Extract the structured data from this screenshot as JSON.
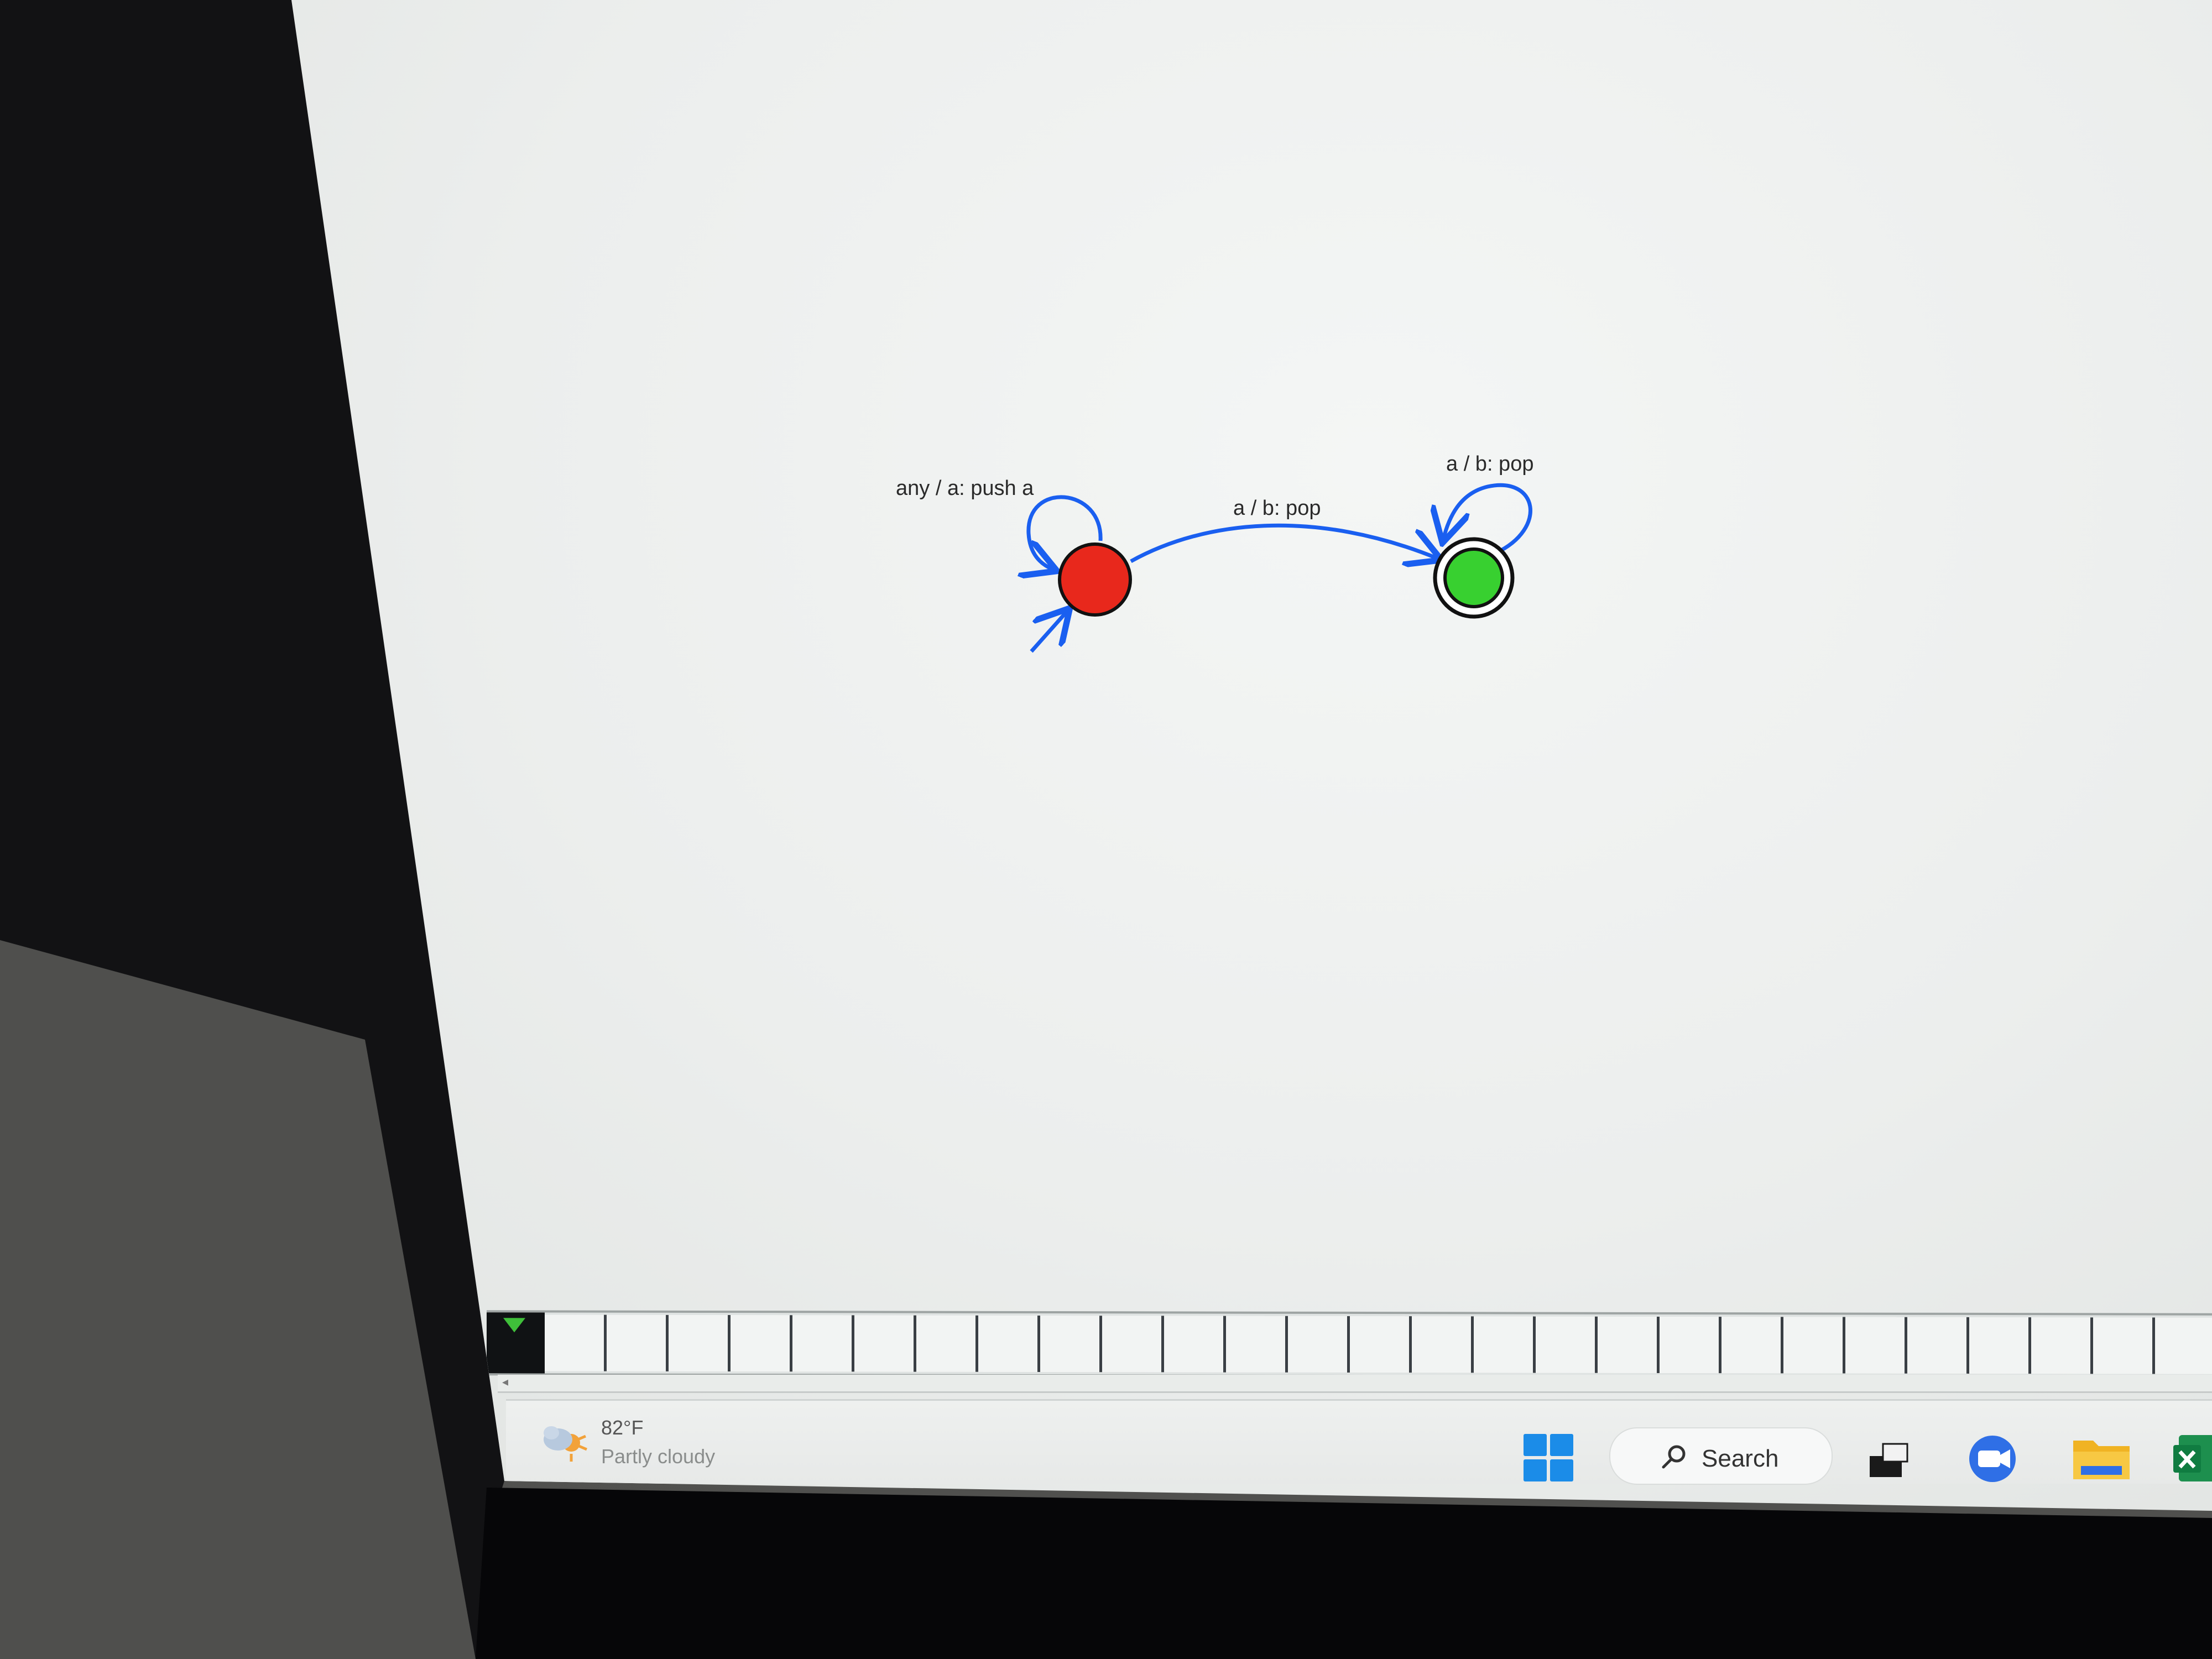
{
  "automaton": {
    "states": [
      {
        "id": "q0",
        "name": "start-state",
        "initial": true,
        "final": false,
        "color": "#e8281c"
      },
      {
        "id": "q1",
        "name": "accept-state",
        "initial": false,
        "final": true,
        "color": "#38d030"
      }
    ],
    "transitions": {
      "q0_loop": "any / a: push a",
      "q0_q1": "a / b: pop",
      "q1_loop": "a / b: pop"
    },
    "edge_color": "#1a5ff0"
  },
  "tape": {
    "cells": [
      "",
      "",
      "",
      "",
      "",
      "",
      "",
      "",
      "",
      "",
      "",
      "",
      "",
      "",
      "",
      "",
      "",
      "",
      "",
      "",
      "",
      "",
      "",
      "",
      "",
      "",
      ""
    ]
  },
  "taskbar": {
    "weather_temp": "82°F",
    "weather_condition": "Partly cloudy",
    "search_label": "Search",
    "start_icon": "windows-start-icon",
    "taskview_icon": "task-view-icon",
    "meet_icon": "video-call-icon",
    "explorer_icon": "folder-icon",
    "app_icon": "excel-icon"
  }
}
